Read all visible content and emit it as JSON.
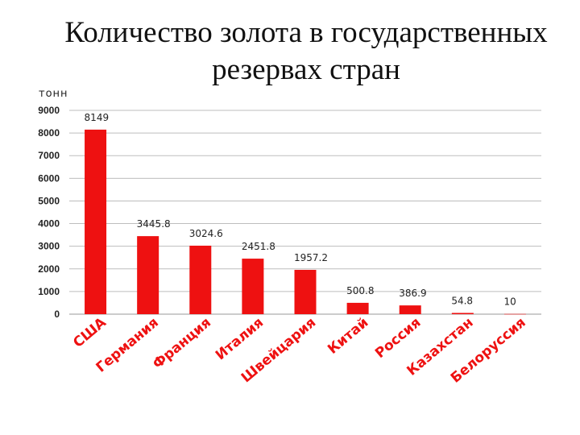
{
  "title": "Количество золота в государственных резервах стран",
  "unit_label": "тонн",
  "colors": {
    "bar": "#ee1111",
    "label": "#ee1111",
    "grid": "#bdbdbd"
  },
  "chart_data": {
    "type": "bar",
    "title": "Количество золота в государственных резервах стран",
    "ylabel": "тонн",
    "xlabel": "",
    "ylim": [
      0,
      9000
    ],
    "ytick_step": 1000,
    "grid": true,
    "categories": [
      "США",
      "Германия",
      "Франция",
      "Италия",
      "Швейцария",
      "Китай",
      "Россия",
      "Казахстан",
      "Белоруссия"
    ],
    "values": [
      8149,
      3445.8,
      3024.6,
      2451.8,
      1957.2,
      500.8,
      386.9,
      54.8,
      10
    ],
    "data_labels": [
      "8149",
      "3445.8",
      "3024.6",
      "2451.8",
      "1957.2",
      "500.8",
      "386.9",
      "54.8",
      "10"
    ]
  }
}
